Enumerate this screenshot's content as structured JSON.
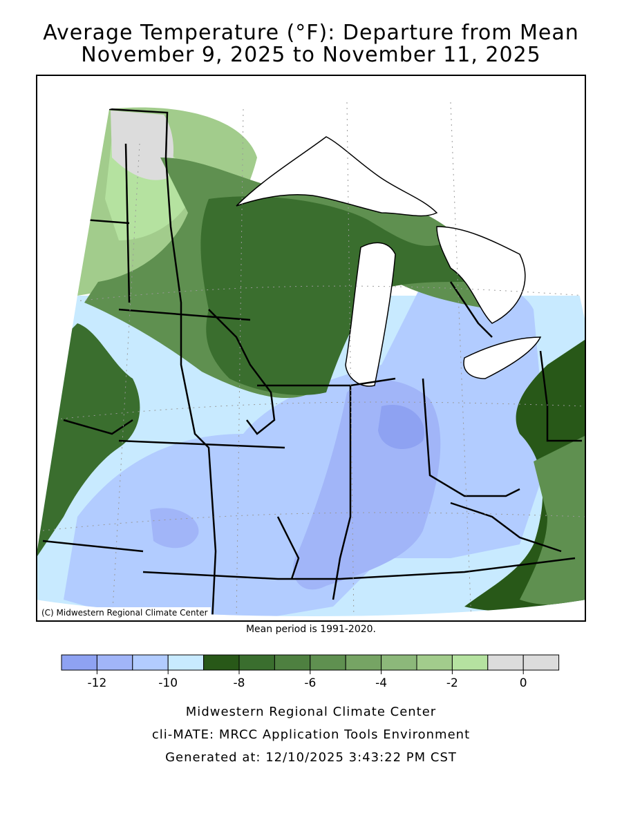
{
  "title": {
    "line1": "Average Temperature (°F): Departure from Mean",
    "line2": "November 9, 2025 to November 11, 2025"
  },
  "map": {
    "copyright": "(C) Midwestern Regional Climate Center",
    "mean_period": "Mean period is 1991-2020."
  },
  "legend": {
    "colors": [
      "#8ea2f2",
      "#a1b5f8",
      "#b2ccff",
      "#c8eaff",
      "#285818",
      "#3a6e2e",
      "#4e8040",
      "#5f9050",
      "#76a464",
      "#8cb87a",
      "#a2cc8c",
      "#b5e2a0",
      "#dcdcdc",
      "#dcdcdc"
    ],
    "tick_labels": [
      "-12",
      "-10",
      "-8",
      "-6",
      "-4",
      "-2",
      "0"
    ]
  },
  "footer": {
    "line1": "Midwestern Regional Climate Center",
    "line2": "cli-MATE: MRCC Application Tools Environment",
    "line3": "Generated at: 12/10/2025 3:43:22 PM CST"
  }
}
